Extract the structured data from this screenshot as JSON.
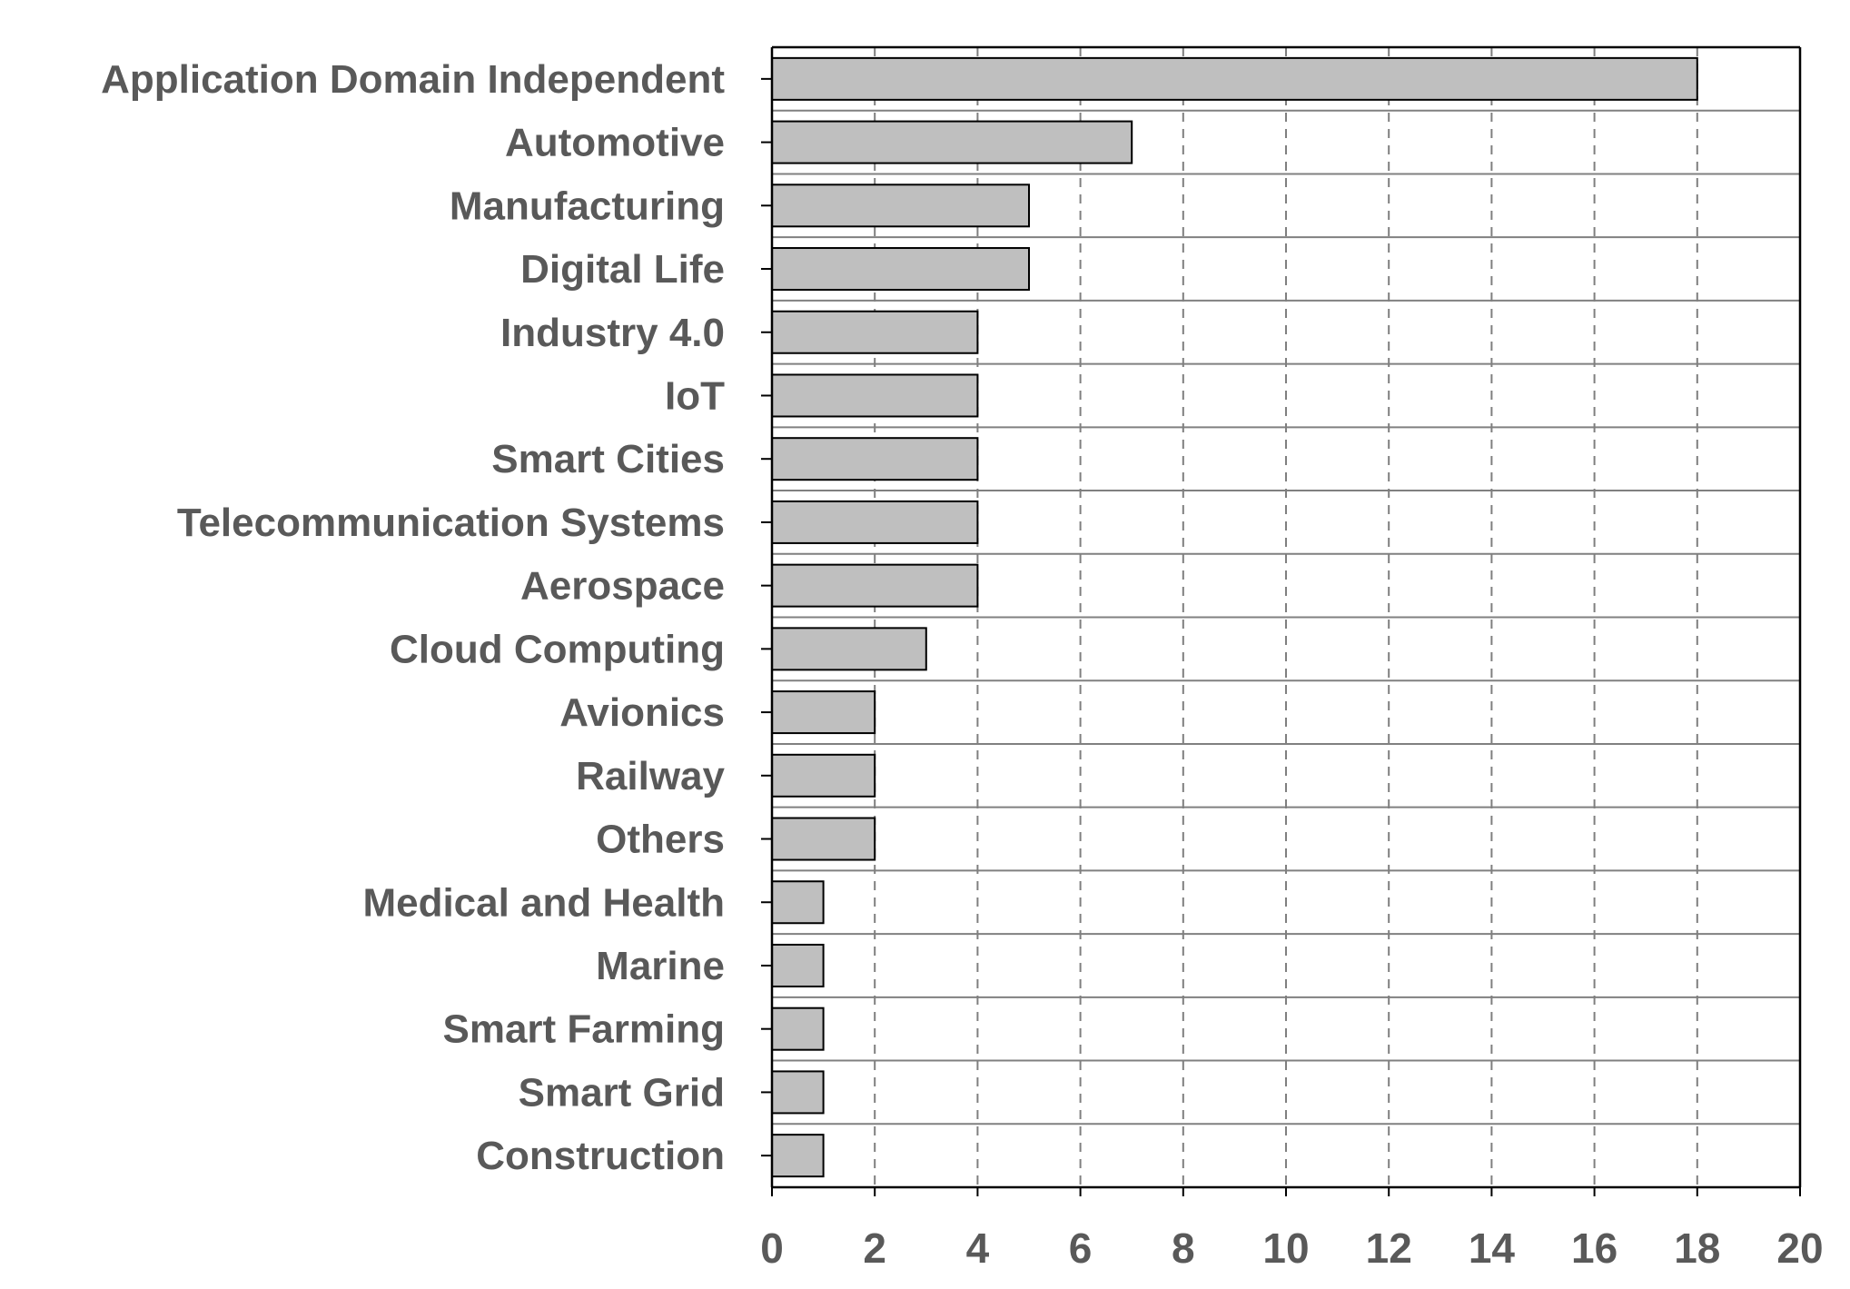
{
  "chart_data": {
    "type": "bar",
    "orientation": "horizontal",
    "title": "",
    "xlabel": "",
    "ylabel": "",
    "categories": [
      "Application Domain Independent",
      "Automotive",
      "Manufacturing",
      "Digital Life",
      "Industry 4.0",
      "IoT",
      "Smart Cities",
      "Telecommunication Systems",
      "Aerospace",
      "Cloud Computing",
      "Avionics",
      "Railway",
      "Others",
      "Medical and Health",
      "Marine",
      "Smart Farming",
      "Smart Grid",
      "Construction"
    ],
    "values": [
      18,
      7,
      5,
      5,
      4,
      4,
      4,
      4,
      4,
      3,
      2,
      2,
      2,
      1,
      1,
      1,
      1,
      1
    ],
    "xlim": [
      0,
      20
    ],
    "xticks": [
      "0",
      "2",
      "4",
      "6",
      "8",
      "10",
      "12",
      "14",
      "16",
      "18",
      "20"
    ],
    "grid": "vertical dashed",
    "legend": "none",
    "colors": {
      "bar_fill": "#bfbfbf",
      "bar_stroke": "#000000",
      "text": "#595959",
      "grid": "#7f7f7f",
      "row_separator": "#808080",
      "axis": "#000000"
    }
  }
}
